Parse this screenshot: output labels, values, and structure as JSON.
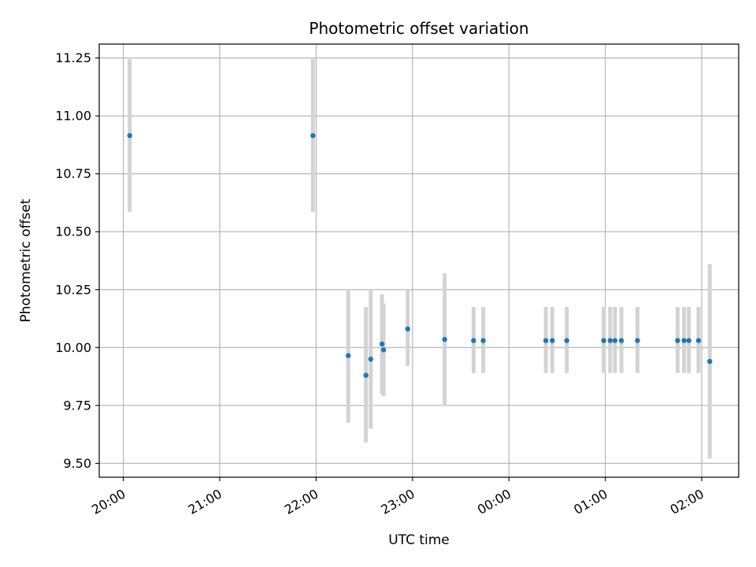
{
  "chart_data": {
    "type": "scatter",
    "title": "Photometric offset variation",
    "xlabel": "UTC time",
    "ylabel": "Photometric offset",
    "x_ticks": [
      "20:00",
      "21:00",
      "22:00",
      "23:00",
      "00:00",
      "01:00",
      "02:00"
    ],
    "y_ticks": [
      "9.50",
      "9.75",
      "10.00",
      "10.25",
      "10.50",
      "10.75",
      "11.00",
      "11.25"
    ],
    "xlim": [
      "19:45",
      "02:23"
    ],
    "ylim": [
      9.44,
      11.31
    ],
    "grid": true,
    "point_color": "#1f77b4",
    "errorbar_color": "#d3d3d3",
    "points": [
      {
        "time": "20:04",
        "y": 10.915,
        "low": 10.585,
        "high": 11.245
      },
      {
        "time": "21:58",
        "y": 10.915,
        "low": 10.585,
        "high": 11.245
      },
      {
        "time": "22:20",
        "y": 9.965,
        "low": 9.675,
        "high": 10.25
      },
      {
        "time": "22:31",
        "y": 9.88,
        "low": 9.59,
        "high": 10.175
      },
      {
        "time": "22:34",
        "y": 9.95,
        "low": 9.65,
        "high": 10.25
      },
      {
        "time": "22:41",
        "y": 10.015,
        "low": 9.8,
        "high": 10.23
      },
      {
        "time": "22:42",
        "y": 9.99,
        "low": 9.79,
        "high": 10.19
      },
      {
        "time": "22:57",
        "y": 10.08,
        "low": 9.92,
        "high": 10.25
      },
      {
        "time": "23:20",
        "y": 10.035,
        "low": 9.75,
        "high": 10.32
      },
      {
        "time": "23:38",
        "y": 10.03,
        "low": 9.89,
        "high": 10.175
      },
      {
        "time": "23:44",
        "y": 10.03,
        "low": 9.89,
        "high": 10.175
      },
      {
        "time": "00:23",
        "y": 10.03,
        "low": 9.89,
        "high": 10.175
      },
      {
        "time": "00:27",
        "y": 10.03,
        "low": 9.89,
        "high": 10.175
      },
      {
        "time": "00:36",
        "y": 10.03,
        "low": 9.89,
        "high": 10.175
      },
      {
        "time": "00:59",
        "y": 10.03,
        "low": 9.89,
        "high": 10.175
      },
      {
        "time": "01:03",
        "y": 10.03,
        "low": 9.89,
        "high": 10.175
      },
      {
        "time": "01:06",
        "y": 10.03,
        "low": 9.89,
        "high": 10.175
      },
      {
        "time": "01:10",
        "y": 10.03,
        "low": 9.89,
        "high": 10.175
      },
      {
        "time": "01:20",
        "y": 10.03,
        "low": 9.89,
        "high": 10.175
      },
      {
        "time": "01:45",
        "y": 10.03,
        "low": 9.89,
        "high": 10.175
      },
      {
        "time": "01:49",
        "y": 10.03,
        "low": 9.89,
        "high": 10.175
      },
      {
        "time": "01:52",
        "y": 10.03,
        "low": 9.89,
        "high": 10.175
      },
      {
        "time": "01:58",
        "y": 10.03,
        "low": 9.89,
        "high": 10.175
      },
      {
        "time": "02:05",
        "y": 9.94,
        "low": 9.52,
        "high": 10.36
      }
    ]
  }
}
